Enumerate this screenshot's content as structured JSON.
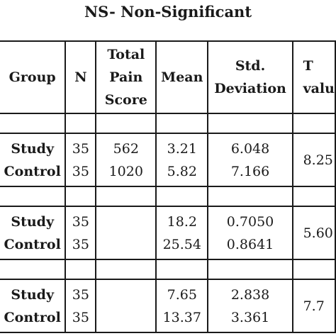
{
  "caption": "NS- Non-Significant",
  "headers": {
    "group": "Group",
    "n": "N",
    "total_pain_score": [
      "Total",
      "Pain",
      "Score"
    ],
    "mean": "Mean",
    "std_deviation": [
      "Std.",
      "Deviation"
    ],
    "t_value": [
      "T",
      "valu"
    ]
  },
  "rows": [
    {
      "group_a": "Study",
      "group_b": "Control",
      "n_a": "35",
      "n_b": "35",
      "total_a": "562",
      "total_b": "1020",
      "mean_a": "3.21",
      "mean_b": "5.82",
      "sd_a": "6.048",
      "sd_b": "7.166",
      "t_value": "8.25"
    },
    {
      "group_a": "Study",
      "group_b": "Control",
      "n_a": "35",
      "n_b": "35",
      "total_a": "",
      "total_b": "",
      "mean_a": "18.2",
      "mean_b": "25.54",
      "sd_a": "0.7050",
      "sd_b": "0.8641",
      "t_value": "5.60"
    },
    {
      "group_a": "Study",
      "group_b": "Control",
      "n_a": "35",
      "n_b": "35",
      "total_a": "",
      "total_b": "",
      "mean_a": "7.65",
      "mean_b": "13.37",
      "sd_a": "2.838",
      "sd_b": "3.361",
      "t_value": "7.7"
    }
  ]
}
